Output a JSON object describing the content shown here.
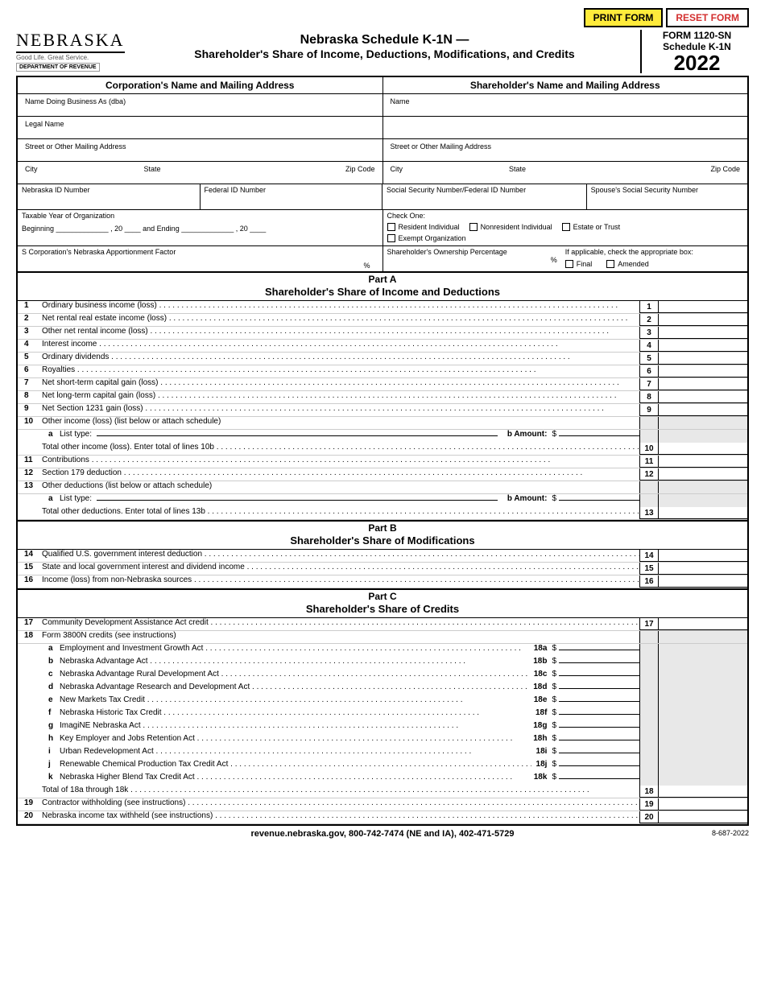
{
  "buttons": {
    "print": "PRINT FORM",
    "reset": "RESET FORM"
  },
  "logo": {
    "name": "NEBRASKA",
    "tagline": "Good Life. Great Service.",
    "dept": "DEPARTMENT OF REVENUE"
  },
  "title": {
    "line1": "Nebraska Schedule K-1N  —",
    "line2": "Shareholder's Share of Income, Deductions, Modifications, and Credits"
  },
  "formbox": {
    "form": "FORM 1120-SN",
    "schedule": "Schedule K-1N",
    "year": "2022"
  },
  "corp_hdr": "Corporation's Name and Mailing Address",
  "sh_hdr": "Shareholder's Name and Mailing Address",
  "labels": {
    "dba": "Name Doing Business As (dba)",
    "name": "Name",
    "legal": "Legal Name",
    "street": "Street or Other Mailing Address",
    "city": "City",
    "state": "State",
    "zip": "Zip Code",
    "ne_id": "Nebraska ID Number",
    "fed_id": "Federal ID Number",
    "ssn": "Social Security Number/Federal ID Number",
    "spouse_ssn": "Spouse's Social Security Number",
    "taxyear": "Taxable Year of Organization",
    "beginning": "Beginning",
    "ending": "and Ending",
    "checkone": "Check One:",
    "resident": "Resident Individual",
    "nonresident": "Nonresident Individual",
    "estate": "Estate or Trust",
    "exempt": "Exempt Organization",
    "apport": "S Corporation's Nebraska Apportionment Factor",
    "ownership": "Shareholder's Ownership Percentage",
    "applicable": "If applicable, check the appropriate box:",
    "final": "Final",
    "amended": "Amended"
  },
  "partA": {
    "title": "Part A",
    "sub": "Shareholder's Share of Income and Deductions"
  },
  "partB": {
    "title": "Part B",
    "sub": "Shareholder's Share of Modifications"
  },
  "partC": {
    "title": "Part C",
    "sub": "Shareholder's Share of Credits"
  },
  "lines": {
    "1": "Ordinary business income (loss)",
    "2": "Net rental real estate income (loss)",
    "3": "Other net rental income (loss)",
    "4": "Interest income",
    "5": "Ordinary dividends",
    "6": "Royalties",
    "7": "Net short-term capital gain (loss)",
    "8": "Net long-term capital gain (loss)",
    "9": "Net Section 1231 gain (loss)",
    "10": "Other income (loss) (list below or attach schedule)",
    "10a": "List type:",
    "10b": "Amount:",
    "10total": "Total other income (loss). Enter total of lines 10b",
    "11": "Contributions",
    "12": "Section 179 deduction",
    "13": "Other deductions (list below or attach schedule)",
    "13a": "List type:",
    "13b": "Amount:",
    "13total": "Total other deductions. Enter total of lines 13b",
    "14": "Qualified U.S. government interest deduction",
    "15": "State and local government interest and dividend income",
    "16": "Income (loss) from non-Nebraska sources",
    "17": "Community Development Assistance Act credit",
    "18": "Form 3800N credits (see instructions)",
    "18a": "Employment and Investment Growth Act",
    "18b": "Nebraska Advantage Act",
    "18c": "Nebraska Advantage Rural Development Act",
    "18d": "Nebraska Advantage Research and Development Act",
    "18e": "New Markets Tax Credit",
    "18f": "Nebraska Historic Tax Credit",
    "18g": "ImagiNE Nebraska Act",
    "18h": "Key Employer and Jobs Retention Act",
    "18i": "Urban Redevelopment Act",
    "18j": "Renewable Chemical Production Tax Credit Act",
    "18k": "Nebraska Higher Blend Tax Credit Act",
    "18total": "Total of 18a through 18k",
    "19": "Contractor withholding (see instructions)",
    "20": "Nebraska income tax withheld (see instructions)"
  },
  "footer": {
    "text": "revenue.nebraska.gov, 800-742-7474 (NE and IA), 402-471-5729",
    "code": "8-687-2022"
  },
  "colors": {
    "yellow": "#ffeb3b",
    "red": "#d32f2f",
    "shade": "#e8e8e8"
  }
}
